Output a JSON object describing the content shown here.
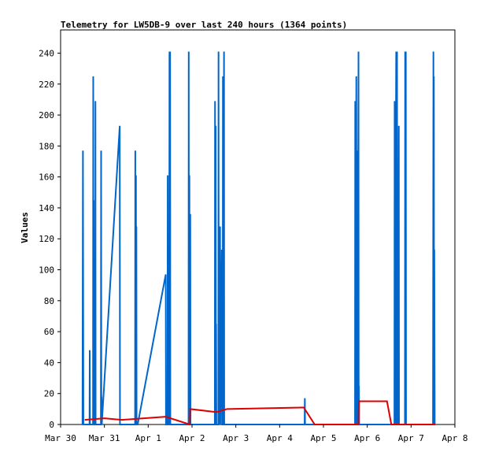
{
  "chart_data": {
    "type": "line",
    "title": "Telemetry for LW5DB-9 over last 240 hours (1364 points)",
    "xlabel": "",
    "ylabel": "Values",
    "x_ticks": [
      "Mar 30",
      "Mar 31",
      "Apr 1",
      "Apr 2",
      "Apr 3",
      "Apr 4",
      "Apr 5",
      "Apr 6",
      "Apr 7",
      "Apr 8"
    ],
    "y_ticks": [
      "0",
      "20",
      "40",
      "60",
      "80",
      "100",
      "120",
      "140",
      "160",
      "180",
      "200",
      "220",
      "240"
    ],
    "xlim": [
      0,
      9
    ],
    "ylim": [
      0,
      255
    ],
    "grid": false,
    "legend": "none",
    "series": [
      {
        "color": "#0066cc",
        "points": [
          [
            0.5,
            0
          ],
          [
            0.51,
            177
          ],
          [
            0.52,
            0
          ],
          [
            0.66,
            0
          ],
          [
            0.665,
            48
          ],
          [
            0.67,
            0
          ],
          [
            0.74,
            0
          ],
          [
            0.745,
            225
          ],
          [
            0.75,
            0
          ],
          [
            0.755,
            145
          ],
          [
            0.76,
            0
          ],
          [
            0.79,
            0
          ],
          [
            0.795,
            209
          ],
          [
            0.8,
            0
          ],
          [
            0.92,
            0
          ],
          [
            0.925,
            177
          ],
          [
            0.93,
            0
          ],
          [
            0.935,
            18
          ],
          [
            0.94,
            0
          ],
          [
            1.35,
            193
          ],
          [
            1.355,
            0
          ],
          [
            1.7,
            0
          ],
          [
            1.705,
            177
          ],
          [
            1.71,
            0
          ],
          [
            1.72,
            161
          ],
          [
            1.725,
            0
          ],
          [
            1.73,
            128
          ],
          [
            1.735,
            0
          ],
          [
            1.76,
            0
          ],
          [
            2.4,
            97
          ],
          [
            2.405,
            0
          ],
          [
            2.44,
            0
          ],
          [
            2.445,
            161
          ],
          [
            2.45,
            0
          ],
          [
            2.48,
            0
          ],
          [
            2.485,
            241
          ],
          [
            2.49,
            0
          ],
          [
            2.5,
            241
          ],
          [
            2.505,
            0
          ],
          [
            2.92,
            0
          ],
          [
            2.925,
            241
          ],
          [
            2.93,
            0
          ],
          [
            2.94,
            161
          ],
          [
            2.945,
            0
          ],
          [
            2.96,
            136
          ],
          [
            2.965,
            0
          ],
          [
            3.52,
            0
          ],
          [
            3.525,
            209
          ],
          [
            3.53,
            0
          ],
          [
            3.54,
            193
          ],
          [
            3.545,
            0
          ],
          [
            3.55,
            65
          ],
          [
            3.555,
            0
          ],
          [
            3.6,
            0
          ],
          [
            3.605,
            241
          ],
          [
            3.61,
            0
          ],
          [
            3.64,
            128
          ],
          [
            3.645,
            0
          ],
          [
            3.68,
            113
          ],
          [
            3.685,
            0
          ],
          [
            3.7,
            0
          ],
          [
            3.705,
            225
          ],
          [
            3.71,
            0
          ],
          [
            3.73,
            241
          ],
          [
            3.735,
            0
          ],
          [
            5.57,
            0
          ],
          [
            5.575,
            17
          ],
          [
            5.58,
            0
          ],
          [
            6.72,
            0
          ],
          [
            6.725,
            209
          ],
          [
            6.73,
            0
          ],
          [
            6.75,
            225
          ],
          [
            6.755,
            0
          ],
          [
            6.77,
            0
          ],
          [
            6.775,
            177
          ],
          [
            6.78,
            0
          ],
          [
            6.8,
            241
          ],
          [
            6.805,
            0
          ],
          [
            6.81,
            25
          ],
          [
            6.815,
            0
          ],
          [
            7.62,
            0
          ],
          [
            7.625,
            209
          ],
          [
            7.63,
            0
          ],
          [
            7.66,
            241
          ],
          [
            7.665,
            0
          ],
          [
            7.68,
            241
          ],
          [
            7.685,
            0
          ],
          [
            7.7,
            97
          ],
          [
            7.705,
            0
          ],
          [
            7.72,
            193
          ],
          [
            7.725,
            0
          ],
          [
            7.86,
            0
          ],
          [
            7.865,
            241
          ],
          [
            7.87,
            0
          ],
          [
            7.88,
            241
          ],
          [
            7.885,
            0
          ],
          [
            8.5,
            0
          ],
          [
            8.51,
            241
          ],
          [
            8.515,
            0
          ],
          [
            8.52,
            225
          ],
          [
            8.525,
            0
          ],
          [
            8.53,
            113
          ],
          [
            8.54,
            0
          ],
          [
            8.55,
            0
          ]
        ]
      },
      {
        "color": "#dd0000",
        "points": [
          [
            0.55,
            3
          ],
          [
            1.0,
            4
          ],
          [
            1.4,
            3
          ],
          [
            2.4,
            5
          ],
          [
            2.95,
            0
          ],
          [
            2.96,
            10
          ],
          [
            3.55,
            8
          ],
          [
            3.8,
            10
          ],
          [
            5.55,
            11
          ],
          [
            5.8,
            0
          ],
          [
            6.8,
            0
          ],
          [
            6.81,
            15
          ],
          [
            7.45,
            15
          ],
          [
            7.55,
            0
          ],
          [
            8.55,
            0
          ]
        ]
      }
    ]
  }
}
